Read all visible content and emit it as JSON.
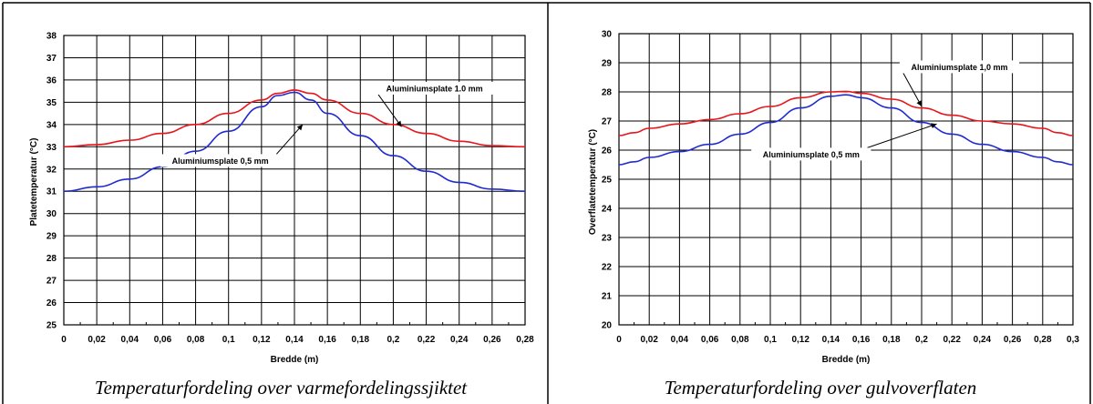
{
  "chart_data": [
    {
      "type": "line",
      "title": "",
      "xlabel": "Bredde (m)",
      "ylabel": "Platetemperatur (°C)",
      "xlim": [
        0,
        0.28
      ],
      "ylim": [
        25,
        38
      ],
      "x_ticks": [
        "0",
        "0,02",
        "0,04",
        "0,06",
        "0,08",
        "0,1",
        "0,12",
        "0,14",
        "0,16",
        "0,18",
        "0,2",
        "0,22",
        "0,24",
        "0,26",
        "0,28"
      ],
      "y_ticks": [
        "25",
        "26",
        "27",
        "28",
        "29",
        "30",
        "31",
        "32",
        "33",
        "34",
        "35",
        "36",
        "37",
        "38"
      ],
      "grid": true,
      "series": [
        {
          "name": "Aluminiumsplate 1.0 mm",
          "color": "#e8151b",
          "x": [
            0,
            0.02,
            0.04,
            0.06,
            0.08,
            0.1,
            0.12,
            0.13,
            0.14,
            0.15,
            0.16,
            0.18,
            0.2,
            0.22,
            0.24,
            0.26,
            0.28
          ],
          "y": [
            33.0,
            33.1,
            33.3,
            33.6,
            34.0,
            34.5,
            35.1,
            35.4,
            35.55,
            35.4,
            35.1,
            34.5,
            34.0,
            33.6,
            33.25,
            33.05,
            33.0
          ]
        },
        {
          "name": "Aluminiumsplate 0,5 mm",
          "color": "#1f2bd1",
          "x": [
            0,
            0.02,
            0.04,
            0.06,
            0.08,
            0.1,
            0.12,
            0.13,
            0.14,
            0.15,
            0.16,
            0.18,
            0.2,
            0.22,
            0.24,
            0.26,
            0.28
          ],
          "y": [
            31.0,
            31.2,
            31.55,
            32.1,
            32.8,
            33.7,
            34.8,
            35.3,
            35.45,
            35.1,
            34.5,
            33.5,
            32.6,
            31.9,
            31.4,
            31.1,
            31.0
          ]
        }
      ],
      "annotations": [
        {
          "text": "Aluminiumsplate 1.0 mm",
          "x": 0.225,
          "y": 35.55,
          "arrow_x": 0.205,
          "arrow_y": 33.9
        },
        {
          "text": "Aluminiumsplate 0,5 mm",
          "x": 0.095,
          "y": 32.3,
          "arrow_x": 0.145,
          "arrow_y": 34.0
        }
      ],
      "caption": "Temperaturfordeling over varmefordelingssjiktet"
    },
    {
      "type": "line",
      "title": "",
      "xlabel": "Bredde (m)",
      "ylabel": "Overflatetemperatur (°C)",
      "xlim": [
        0,
        0.3
      ],
      "ylim": [
        20,
        30
      ],
      "x_ticks": [
        "0",
        "0,02",
        "0,04",
        "0,06",
        "0,08",
        "0,1",
        "0,12",
        "0,14",
        "0,16",
        "0,18",
        "0,2",
        "0,22",
        "0,24",
        "0,26",
        "0,28",
        "0,3"
      ],
      "y_ticks": [
        "20",
        "21",
        "22",
        "23",
        "24",
        "25",
        "26",
        "27",
        "28",
        "29",
        "30"
      ],
      "grid": true,
      "series": [
        {
          "name": "Aluminiumsplate 1,0 mm",
          "color": "#e8151b",
          "x": [
            0,
            0.01,
            0.02,
            0.04,
            0.06,
            0.08,
            0.1,
            0.12,
            0.14,
            0.15,
            0.16,
            0.18,
            0.2,
            0.22,
            0.24,
            0.26,
            0.28,
            0.29,
            0.3
          ],
          "y": [
            26.5,
            26.6,
            26.75,
            26.9,
            27.05,
            27.25,
            27.5,
            27.8,
            28.0,
            28.02,
            27.95,
            27.75,
            27.45,
            27.2,
            27.0,
            26.9,
            26.75,
            26.6,
            26.5
          ]
        },
        {
          "name": "Aluminiumsplate 0,5 mm",
          "color": "#1f2bd1",
          "x": [
            0,
            0.01,
            0.02,
            0.04,
            0.06,
            0.08,
            0.1,
            0.12,
            0.14,
            0.15,
            0.16,
            0.18,
            0.2,
            0.22,
            0.24,
            0.26,
            0.28,
            0.29,
            0.3
          ],
          "y": [
            25.5,
            25.6,
            25.75,
            25.95,
            26.2,
            26.55,
            26.95,
            27.45,
            27.85,
            27.9,
            27.8,
            27.45,
            26.95,
            26.55,
            26.2,
            25.95,
            25.75,
            25.6,
            25.5
          ]
        }
      ],
      "annotations": [
        {
          "text": "Aluminiumsplate 1,0 mm",
          "x": 0.225,
          "y": 28.8,
          "arrow_x": 0.2,
          "arrow_y": 27.5
        },
        {
          "text": "Aluminiumsplate 0,5 mm",
          "x": 0.127,
          "y": 25.8,
          "arrow_x": 0.21,
          "arrow_y": 26.9
        }
      ],
      "caption": "Temperaturfordeling over gulvoverflaten"
    }
  ]
}
